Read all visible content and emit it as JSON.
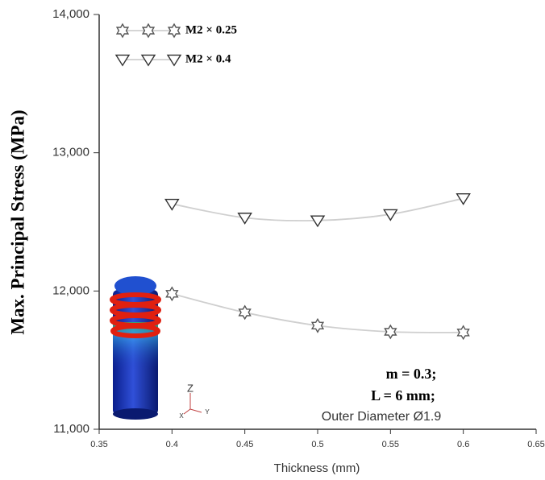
{
  "chart_data": {
    "type": "line",
    "x_label": "Thickness (mm)",
    "y_label": "Max. Principal Stress (MPa)",
    "xlim": [
      0.35,
      0.65
    ],
    "xticks": [
      0.35,
      0.4,
      0.45,
      0.5,
      0.55,
      0.6,
      0.65
    ],
    "ylim": [
      11000,
      14000
    ],
    "yticks": [
      {
        "value": 11000,
        "label": "11,000"
      },
      {
        "value": 12000,
        "label": "12,000"
      },
      {
        "value": 13000,
        "label": "13,000"
      },
      {
        "value": 14000,
        "label": "14,000"
      }
    ],
    "x": [
      0.4,
      0.45,
      0.5,
      0.55,
      0.6
    ],
    "series": [
      {
        "name": "M2 × 0.25",
        "marker": "star",
        "color": "#555555",
        "line_color": "#cfcfcf",
        "values": [
          11980,
          11845,
          11750,
          11705,
          11700
        ]
      },
      {
        "name": "M2 × 0.4",
        "marker": "triangle",
        "color": "#333333",
        "line_color": "#cfcfcf",
        "values": [
          12630,
          12530,
          12510,
          12555,
          12670
        ]
      }
    ],
    "legend": "upper left",
    "annotations": [
      "m = 0.3;",
      "L = 6 mm;",
      "Outer Diameter Ø1.9"
    ],
    "inset_axes": [
      "Z",
      "X",
      "Y"
    ]
  }
}
